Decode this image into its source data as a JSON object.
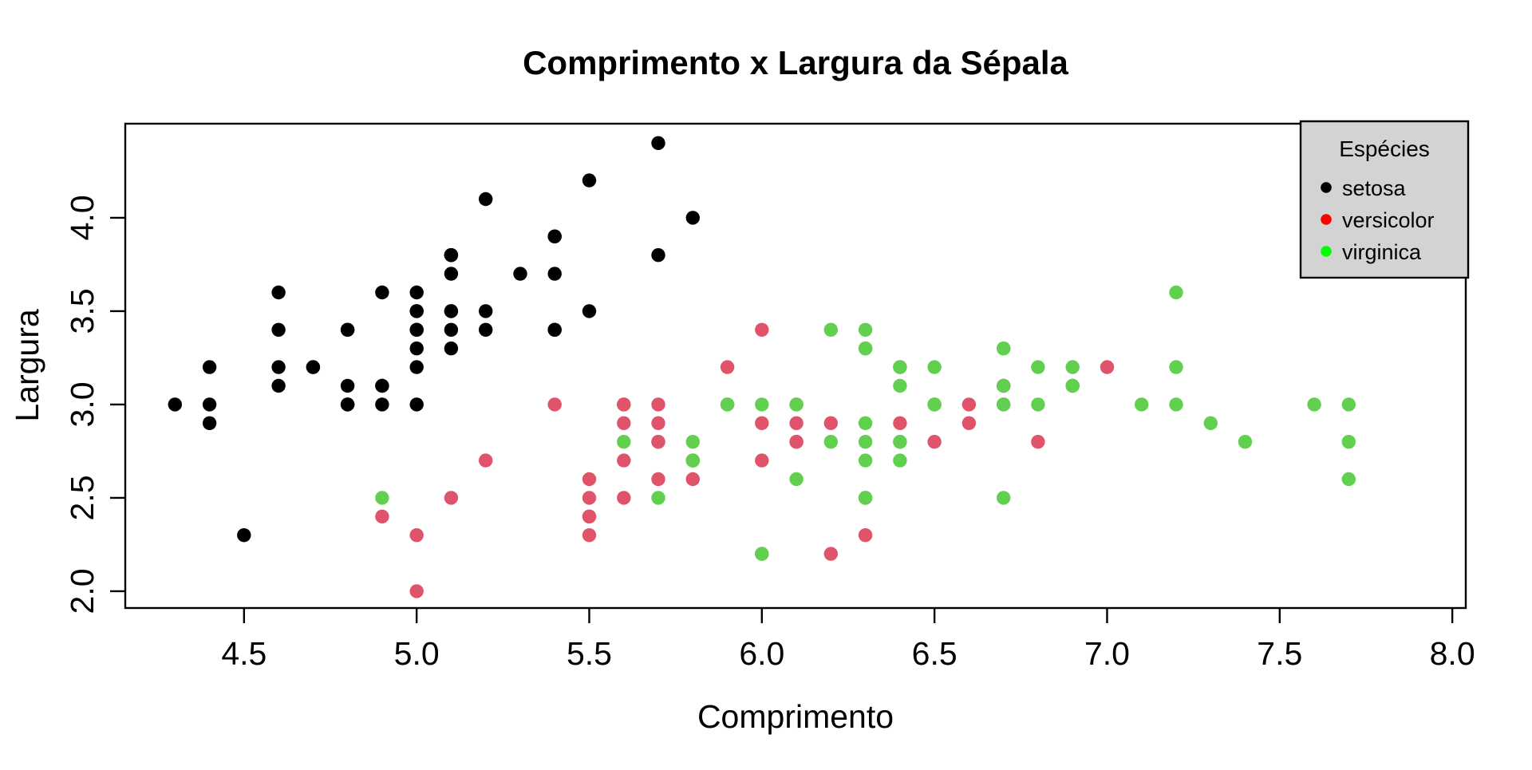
{
  "figure": {
    "background": "#FFFFFF"
  },
  "chart_data": {
    "type": "scatter",
    "title": "Comprimento x Largura da Sépala",
    "xlabel": "Comprimento",
    "ylabel": "Largura",
    "xlim": [
      4.156,
      8.039
    ],
    "ylim": [
      1.91,
      4.504
    ],
    "x_tick_values": [
      4.5,
      5.0,
      5.5,
      6.0,
      6.5,
      7.0,
      7.5,
      8.0
    ],
    "x_tick_labels": [
      "4.5",
      "5.0",
      "5.5",
      "6.0",
      "6.5",
      "7.0",
      "7.5",
      "8.0"
    ],
    "y_tick_values": [
      2.0,
      2.5,
      3.0,
      3.5,
      4.0
    ],
    "y_tick_labels": [
      "2.0",
      "2.5",
      "3.0",
      "3.5",
      "4.0"
    ],
    "grid": false,
    "point_style": "filled-circle",
    "axis_color": "#000000",
    "legend": {
      "title": "Espécies",
      "position": "top-right",
      "background": "#D3D3D3",
      "border_color": "#000000",
      "entries": [
        {
          "label": "setosa",
          "color": "#000000"
        },
        {
          "label": "versicolor",
          "color": "#FF0000"
        },
        {
          "label": "virginica",
          "color": "#00FF00"
        }
      ]
    },
    "series": [
      {
        "name": "setosa",
        "color": "#000000",
        "points": [
          [
            5.1,
            3.5
          ],
          [
            4.9,
            3.0
          ],
          [
            4.7,
            3.2
          ],
          [
            4.6,
            3.1
          ],
          [
            5.0,
            3.6
          ],
          [
            5.4,
            3.9
          ],
          [
            4.6,
            3.4
          ],
          [
            5.0,
            3.4
          ],
          [
            4.4,
            2.9
          ],
          [
            4.9,
            3.1
          ],
          [
            5.4,
            3.7
          ],
          [
            4.8,
            3.4
          ],
          [
            4.8,
            3.0
          ],
          [
            4.3,
            3.0
          ],
          [
            5.8,
            4.0
          ],
          [
            5.7,
            4.4
          ],
          [
            5.4,
            3.9
          ],
          [
            5.1,
            3.5
          ],
          [
            5.7,
            3.8
          ],
          [
            5.1,
            3.8
          ],
          [
            5.4,
            3.4
          ],
          [
            5.1,
            3.7
          ],
          [
            4.6,
            3.6
          ],
          [
            5.1,
            3.3
          ],
          [
            4.8,
            3.4
          ],
          [
            5.0,
            3.0
          ],
          [
            5.0,
            3.4
          ],
          [
            5.2,
            3.5
          ],
          [
            5.2,
            3.4
          ],
          [
            4.7,
            3.2
          ],
          [
            4.8,
            3.1
          ],
          [
            5.4,
            3.4
          ],
          [
            5.2,
            4.1
          ],
          [
            5.5,
            4.2
          ],
          [
            4.9,
            3.1
          ],
          [
            5.0,
            3.2
          ],
          [
            5.5,
            3.5
          ],
          [
            4.9,
            3.6
          ],
          [
            4.4,
            3.0
          ],
          [
            5.1,
            3.4
          ],
          [
            5.0,
            3.5
          ],
          [
            4.5,
            2.3
          ],
          [
            4.4,
            3.2
          ],
          [
            5.0,
            3.5
          ],
          [
            5.1,
            3.8
          ],
          [
            4.8,
            3.0
          ],
          [
            5.1,
            3.8
          ],
          [
            4.6,
            3.2
          ],
          [
            5.3,
            3.7
          ],
          [
            5.0,
            3.3
          ]
        ]
      },
      {
        "name": "versicolor",
        "color": "#DF536B",
        "points": [
          [
            7.0,
            3.2
          ],
          [
            6.4,
            3.2
          ],
          [
            6.9,
            3.1
          ],
          [
            5.5,
            2.3
          ],
          [
            6.5,
            2.8
          ],
          [
            5.7,
            2.8
          ],
          [
            6.3,
            3.3
          ],
          [
            4.9,
            2.4
          ],
          [
            6.6,
            2.9
          ],
          [
            5.2,
            2.7
          ],
          [
            5.0,
            2.0
          ],
          [
            5.9,
            3.0
          ],
          [
            6.0,
            2.2
          ],
          [
            6.1,
            2.9
          ],
          [
            5.6,
            2.9
          ],
          [
            6.7,
            3.1
          ],
          [
            5.6,
            3.0
          ],
          [
            5.8,
            2.7
          ],
          [
            6.2,
            2.2
          ],
          [
            5.6,
            2.5
          ],
          [
            5.9,
            3.2
          ],
          [
            6.1,
            2.8
          ],
          [
            6.3,
            2.5
          ],
          [
            6.1,
            2.8
          ],
          [
            6.4,
            2.9
          ],
          [
            6.6,
            3.0
          ],
          [
            6.8,
            2.8
          ],
          [
            6.7,
            3.0
          ],
          [
            6.0,
            2.9
          ],
          [
            5.7,
            2.6
          ],
          [
            5.5,
            2.4
          ],
          [
            5.5,
            2.4
          ],
          [
            5.8,
            2.7
          ],
          [
            6.0,
            2.7
          ],
          [
            5.4,
            3.0
          ],
          [
            6.0,
            3.4
          ],
          [
            6.7,
            3.1
          ],
          [
            6.3,
            2.3
          ],
          [
            5.6,
            3.0
          ],
          [
            5.5,
            2.5
          ],
          [
            5.5,
            2.6
          ],
          [
            6.1,
            3.0
          ],
          [
            5.8,
            2.6
          ],
          [
            5.0,
            2.3
          ],
          [
            5.6,
            2.7
          ],
          [
            5.7,
            3.0
          ],
          [
            5.7,
            2.9
          ],
          [
            6.2,
            2.9
          ],
          [
            5.1,
            2.5
          ],
          [
            5.7,
            2.8
          ]
        ]
      },
      {
        "name": "virginica",
        "color": "#61D04F",
        "points": [
          [
            6.3,
            3.3
          ],
          [
            5.8,
            2.7
          ],
          [
            7.1,
            3.0
          ],
          [
            6.3,
            2.9
          ],
          [
            6.5,
            3.0
          ],
          [
            7.6,
            3.0
          ],
          [
            4.9,
            2.5
          ],
          [
            7.3,
            2.9
          ],
          [
            6.7,
            2.5
          ],
          [
            7.2,
            3.6
          ],
          [
            6.5,
            3.2
          ],
          [
            6.4,
            2.7
          ],
          [
            6.8,
            3.0
          ],
          [
            5.7,
            2.5
          ],
          [
            5.8,
            2.8
          ],
          [
            6.4,
            3.2
          ],
          [
            6.5,
            3.0
          ],
          [
            7.7,
            3.8
          ],
          [
            7.7,
            2.6
          ],
          [
            6.0,
            2.2
          ],
          [
            6.9,
            3.2
          ],
          [
            5.6,
            2.8
          ],
          [
            7.7,
            2.8
          ],
          [
            6.3,
            2.7
          ],
          [
            6.7,
            3.3
          ],
          [
            7.2,
            3.2
          ],
          [
            6.2,
            2.8
          ],
          [
            6.1,
            3.0
          ],
          [
            6.4,
            2.8
          ],
          [
            7.2,
            3.0
          ],
          [
            7.4,
            2.8
          ],
          [
            7.9,
            3.8
          ],
          [
            6.4,
            2.8
          ],
          [
            6.3,
            2.8
          ],
          [
            6.1,
            2.6
          ],
          [
            7.7,
            3.0
          ],
          [
            6.3,
            3.4
          ],
          [
            6.4,
            3.1
          ],
          [
            6.0,
            3.0
          ],
          [
            6.9,
            3.1
          ],
          [
            6.7,
            3.1
          ],
          [
            6.9,
            3.1
          ],
          [
            5.8,
            2.7
          ],
          [
            6.8,
            3.2
          ],
          [
            6.7,
            3.3
          ],
          [
            6.7,
            3.0
          ],
          [
            6.3,
            2.5
          ],
          [
            6.5,
            3.0
          ],
          [
            6.2,
            3.4
          ],
          [
            5.9,
            3.0
          ]
        ]
      }
    ]
  }
}
